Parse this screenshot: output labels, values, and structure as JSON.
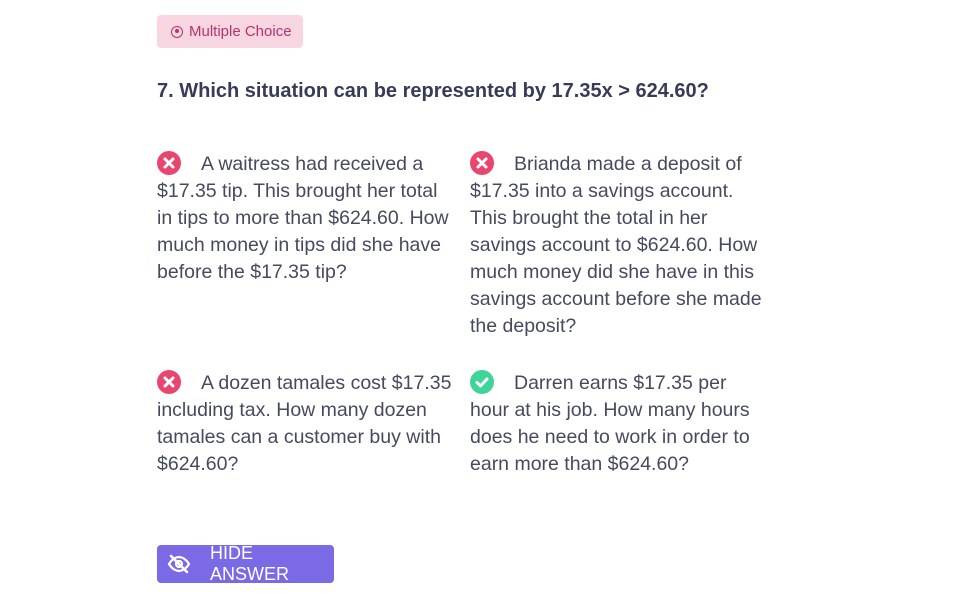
{
  "badge": {
    "icon": "radio-dot-icon",
    "label": "Multiple Choice",
    "color": "#b8336a"
  },
  "question": "7. Which situation can be represented by 17.35x > 624.60?",
  "options": [
    {
      "status": "incorrect",
      "icon": "x-circle-icon",
      "text": "A waitress had received a $17.35 tip. This brought her total in tips to more than $624.60. How much money in tips did she have before the $17.35 tip?"
    },
    {
      "status": "incorrect",
      "icon": "x-circle-icon",
      "text": "Brianda made a deposit of $17.35 into a savings account. This brought the total in her savings account to $624.60. How much money did she have in this savings account before she made the deposit?"
    },
    {
      "status": "incorrect",
      "icon": "x-circle-icon",
      "text": "A dozen tamales cost $17.35 including tax. How many dozen tamales can a customer buy with $624.60?"
    },
    {
      "status": "correct",
      "icon": "check-circle-icon",
      "text": "Darren earns $17.35 per hour at his job. How many hours does he need to work in order to earn more than $624.60?"
    }
  ],
  "button": {
    "icon": "eye-slash-icon",
    "label": "HIDE ANSWER",
    "color": "#7a6ae6"
  },
  "colors": {
    "incorrect": "#e8466e",
    "correct": "#3fd59a"
  }
}
